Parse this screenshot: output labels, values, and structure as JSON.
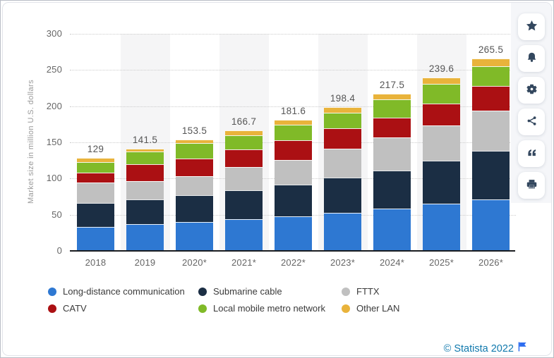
{
  "chart_data": {
    "type": "bar",
    "stacked": true,
    "title": "",
    "xlabel": "",
    "ylabel": "Market size in million U.S. dollars",
    "ylim": [
      0,
      300
    ],
    "y_ticks": [
      0,
      50,
      100,
      150,
      200,
      250,
      300
    ],
    "grid": "horizontal-dotted",
    "legend_position": "bottom",
    "striped_columns": [
      1,
      3,
      5,
      7
    ],
    "categories": [
      "2018",
      "2019",
      "2020*",
      "2021*",
      "2022*",
      "2023*",
      "2024*",
      "2025*",
      "2026*"
    ],
    "totals": [
      "129",
      "141.5",
      "153.5",
      "166.7",
      "181.6",
      "198.4",
      "217.5",
      "239.6",
      "265.5"
    ],
    "series": [
      {
        "name": "Long-distance communication",
        "color": "#2e78d2",
        "values": [
          33,
          37,
          40,
          43.5,
          48,
          53,
          58,
          65,
          71.5
        ]
      },
      {
        "name": "Submarine cable",
        "color": "#1b2e44",
        "values": [
          33,
          34,
          36.5,
          40,
          44,
          48,
          53.5,
          60,
          67
        ]
      },
      {
        "name": "FTTX",
        "color": "#c0c0c0",
        "values": [
          28,
          25.5,
          27,
          32.5,
          34,
          40,
          45.5,
          48.5,
          55
        ]
      },
      {
        "name": "CATV",
        "color": "#ab1013",
        "values": [
          14,
          23,
          24.5,
          24.5,
          27,
          28,
          27,
          30,
          34
        ]
      },
      {
        "name": "Local mobile metro network",
        "color": "#80ba28",
        "values": [
          15,
          17.5,
          21,
          19,
          21.5,
          21.5,
          25,
          27,
          28
        ]
      },
      {
        "name": "Other LAN",
        "color": "#e9b33b",
        "values": [
          6,
          4.5,
          4.5,
          7.2,
          7.1,
          7.9,
          8.5,
          9.1,
          10
        ]
      }
    ]
  },
  "sidebar": {
    "buttons": [
      {
        "label": "favorite",
        "icon": "star-icon"
      },
      {
        "label": "alerts",
        "icon": "bell-icon"
      },
      {
        "label": "settings",
        "icon": "gear-icon"
      },
      {
        "label": "share",
        "icon": "share-icon"
      },
      {
        "label": "cite",
        "icon": "quote-icon"
      },
      {
        "label": "print",
        "icon": "printer-icon"
      }
    ]
  },
  "footer": {
    "copyright": "© Statista 2022"
  }
}
